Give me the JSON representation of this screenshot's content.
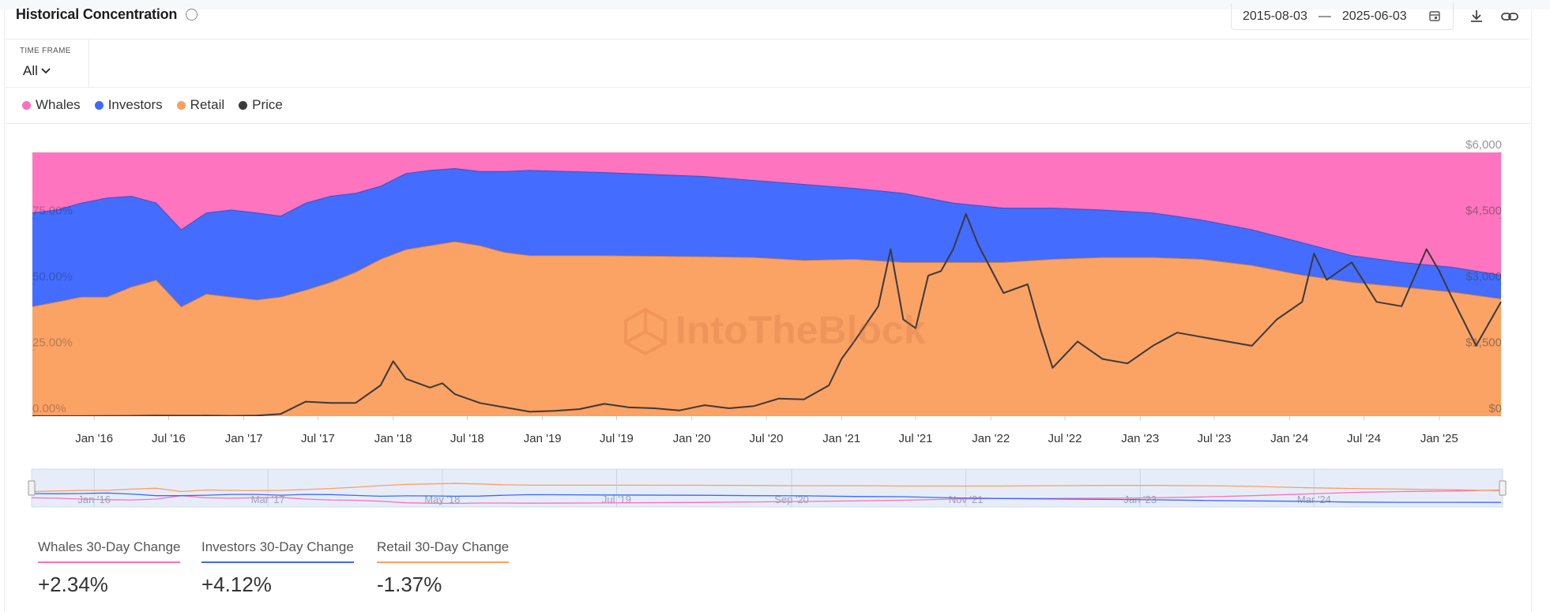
{
  "header": {
    "title": "Historical Concentration",
    "separator": "—"
  },
  "time_frame": {
    "label": "TIME FRAME",
    "value": "All"
  },
  "chart_data": {
    "type": "area",
    "stacked": true,
    "watermark": "IntoTheBlock",
    "xlim": [
      "2015-08-03",
      "2025-06-03"
    ],
    "x": [
      "2015-08",
      "2015-10",
      "2015-12",
      "2016-02",
      "2016-04",
      "2016-06",
      "2016-08",
      "2016-10",
      "2016-12",
      "2017-02",
      "2017-04",
      "2017-06",
      "2017-08",
      "2017-10",
      "2017-12",
      "2018-02",
      "2018-04",
      "2018-06",
      "2018-08",
      "2018-10",
      "2018-12",
      "2019-06",
      "2020-02",
      "2020-06",
      "2020-10",
      "2021-02",
      "2021-06",
      "2021-10",
      "2022-02",
      "2022-06",
      "2022-10",
      "2023-02",
      "2023-06",
      "2023-10",
      "2024-02",
      "2024-06",
      "2024-10",
      "2025-02",
      "2025-06"
    ],
    "ylim": [
      0,
      100
    ],
    "yticks": [
      {
        "value": 0,
        "label": "0.00%"
      },
      {
        "value": 25,
        "label": "25.00%"
      },
      {
        "value": 50,
        "label": "50.00%"
      },
      {
        "value": 75,
        "label": "75.00%"
      }
    ],
    "y2lim": [
      0,
      6000
    ],
    "y2ticks": [
      {
        "value": 0,
        "label": "$0"
      },
      {
        "value": 1500,
        "label": "$1,500"
      },
      {
        "value": 3000,
        "label": "$3,000"
      },
      {
        "value": 4500,
        "label": "$4,500"
      },
      {
        "value": 6000,
        "label": "$6,000"
      }
    ],
    "xticks": [
      {
        "value": "2016-01",
        "label": "Jan '16"
      },
      {
        "value": "2016-07",
        "label": "Jul '16"
      },
      {
        "value": "2017-01",
        "label": "Jan '17"
      },
      {
        "value": "2017-07",
        "label": "Jul '17"
      },
      {
        "value": "2018-01",
        "label": "Jan '18"
      },
      {
        "value": "2018-07",
        "label": "Jul '18"
      },
      {
        "value": "2019-01",
        "label": "Jan '19"
      },
      {
        "value": "2019-07",
        "label": "Jul '19"
      },
      {
        "value": "2020-01",
        "label": "Jan '20"
      },
      {
        "value": "2020-07",
        "label": "Jul '20"
      },
      {
        "value": "2021-01",
        "label": "Jan '21"
      },
      {
        "value": "2021-07",
        "label": "Jul '21"
      },
      {
        "value": "2022-01",
        "label": "Jan '22"
      },
      {
        "value": "2022-07",
        "label": "Jul '22"
      },
      {
        "value": "2023-01",
        "label": "Jan '23"
      },
      {
        "value": "2023-07",
        "label": "Jul '23"
      },
      {
        "value": "2024-01",
        "label": "Jan '24"
      },
      {
        "value": "2024-07",
        "label": "Jul '24"
      },
      {
        "value": "2025-01",
        "label": "Jan '25"
      }
    ],
    "series": [
      {
        "name": "Whales",
        "color": "#ff6fbd",
        "values": [
          22.8,
          21.7,
          19.1,
          17.2,
          16.5,
          19.1,
          29.2,
          22.8,
          21.7,
          22.8,
          24.0,
          19.1,
          16.5,
          15.4,
          12.7,
          7.9,
          6.7,
          6.0,
          7.1,
          7.1,
          6.7,
          7.5,
          9.0,
          10.5,
          12.0,
          13.5,
          15.4,
          19.1,
          21.0,
          21.0,
          21.7,
          22.8,
          25.5,
          29.2,
          34.1,
          39.0,
          41.6,
          43.4,
          46.4
        ]
      },
      {
        "name": "Investors",
        "color": "#3e68ff",
        "values": [
          35.6,
          34.9,
          35.6,
          37.5,
          34.4,
          29.2,
          29.2,
          30.8,
          33.0,
          33.0,
          30.7,
          33.0,
          32.6,
          29.9,
          27.7,
          28.8,
          28.5,
          27.7,
          28.1,
          30.7,
          32.3,
          31.5,
          30.4,
          29.2,
          28.8,
          26.9,
          26.2,
          22.5,
          20.6,
          19.4,
          18.0,
          16.9,
          14.9,
          13.5,
          12.3,
          10.1,
          9.3,
          9.4,
          9.0
        ]
      },
      {
        "name": "Retail",
        "color": "#fb9f60",
        "values": [
          41.6,
          43.4,
          45.3,
          45.3,
          49.1,
          51.7,
          41.6,
          46.4,
          45.3,
          44.2,
          45.3,
          47.9,
          50.9,
          54.7,
          59.6,
          63.3,
          64.8,
          66.3,
          64.8,
          62.2,
          61.0,
          61.0,
          60.6,
          60.3,
          59.2,
          59.6,
          58.4,
          58.4,
          58.4,
          59.6,
          60.3,
          60.3,
          59.6,
          57.3,
          53.6,
          50.9,
          49.1,
          47.2,
          44.6
        ]
      },
      {
        "name": "Price",
        "color": "#3a3a3a",
        "axis": "y2",
        "type": "line",
        "x": [
          "2015-08",
          "2015-10",
          "2015-12",
          "2016-02",
          "2016-04",
          "2016-06",
          "2016-08",
          "2016-10",
          "2016-12",
          "2017-02",
          "2017-04",
          "2017-06",
          "2017-08",
          "2017-10",
          "2017-12",
          "2018-01",
          "2018-02",
          "2018-04",
          "2018-05",
          "2018-06",
          "2018-08",
          "2018-10",
          "2018-12",
          "2019-02",
          "2019-04",
          "2019-06",
          "2019-08",
          "2019-10",
          "2019-12",
          "2020-02",
          "2020-04",
          "2020-06",
          "2020-08",
          "2020-10",
          "2020-12",
          "2021-01",
          "2021-02",
          "2021-04",
          "2021-05",
          "2021-06",
          "2021-07",
          "2021-08",
          "2021-09",
          "2021-10",
          "2021-11",
          "2021-12",
          "2022-02",
          "2022-04",
          "2022-05",
          "2022-06",
          "2022-08",
          "2022-10",
          "2022-12",
          "2023-02",
          "2023-04",
          "2023-06",
          "2023-08",
          "2023-10",
          "2023-12",
          "2024-02",
          "2024-03",
          "2024-04",
          "2024-06",
          "2024-08",
          "2024-10",
          "2024-12",
          "2025-01",
          "2025-02",
          "2025-04",
          "2025-06"
        ],
        "values": [
          2,
          1,
          1,
          5,
          8,
          14,
          11,
          12,
          8,
          12,
          50,
          330,
          300,
          300,
          700,
          1250,
          850,
          650,
          750,
          500,
          300,
          200,
          100,
          120,
          160,
          280,
          200,
          180,
          130,
          250,
          180,
          230,
          400,
          380,
          700,
          1300,
          1700,
          2500,
          3800,
          2200,
          2000,
          3200,
          3300,
          3800,
          4600,
          3900,
          2800,
          3000,
          2000,
          1100,
          1700,
          1300,
          1200,
          1600,
          1900,
          1800,
          1700,
          1600,
          2200,
          2600,
          3700,
          3100,
          3500,
          2600,
          2500,
          3800,
          3300,
          2700,
          1600,
          2600
        ]
      }
    ],
    "navigator": {
      "xticks": [
        {
          "value": "2016-01",
          "label": "Jan '16"
        },
        {
          "value": "2017-03",
          "label": "Mar '17"
        },
        {
          "value": "2018-05",
          "label": "May '18"
        },
        {
          "value": "2019-07",
          "label": "Jul '19"
        },
        {
          "value": "2020-09",
          "label": "Sep '20"
        },
        {
          "value": "2021-11",
          "label": "Nov '21"
        },
        {
          "value": "2023-01",
          "label": "Jan '23"
        },
        {
          "value": "2024-03",
          "label": "Mar '24"
        }
      ]
    }
  },
  "changes": [
    {
      "label": "Whales 30-Day Change",
      "value": "+2.34%"
    },
    {
      "label": "Investors 30-Day Change",
      "value": "+4.12%"
    },
    {
      "label": "Retail 30-Day Change",
      "value": "-1.37%"
    }
  ]
}
